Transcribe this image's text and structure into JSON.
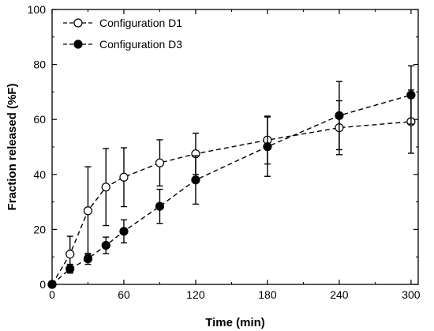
{
  "chart_data": {
    "type": "scatter",
    "xlabel": "Time (min)",
    "ylabel": "Fraction released (%F)",
    "xlim": [
      0,
      306
    ],
    "ylim": [
      0,
      100
    ],
    "xticks": [
      0,
      60,
      120,
      180,
      240,
      300
    ],
    "yticks": [
      0,
      20,
      40,
      60,
      80,
      100
    ],
    "legend_position": "top-left",
    "grid": false,
    "series": [
      {
        "name": "Configuration D1",
        "marker": "open-circle",
        "line": "dashed",
        "color": "#000000",
        "x": [
          0,
          15,
          30,
          45,
          60,
          90,
          120,
          180,
          240,
          300
        ],
        "y": [
          0,
          11,
          26.8,
          35.4,
          39,
          44.2,
          47.5,
          52.5,
          57,
          59.2
        ],
        "err": [
          0,
          6.5,
          16,
          14,
          10.7,
          8.4,
          7.5,
          8.7,
          9.8,
          11.5
        ]
      },
      {
        "name": "Configuration D3",
        "marker": "filled-circle",
        "line": "dashed",
        "color": "#000000",
        "x": [
          0,
          15,
          30,
          45,
          60,
          90,
          120,
          180,
          240,
          300
        ],
        "y": [
          0,
          5.7,
          9.3,
          14.2,
          19.3,
          28.4,
          38,
          50.1,
          61.4,
          68.9
        ],
        "err": [
          0,
          1.6,
          2,
          3,
          4.2,
          6.2,
          8.8,
          10.8,
          12.4,
          10.6
        ]
      }
    ]
  }
}
